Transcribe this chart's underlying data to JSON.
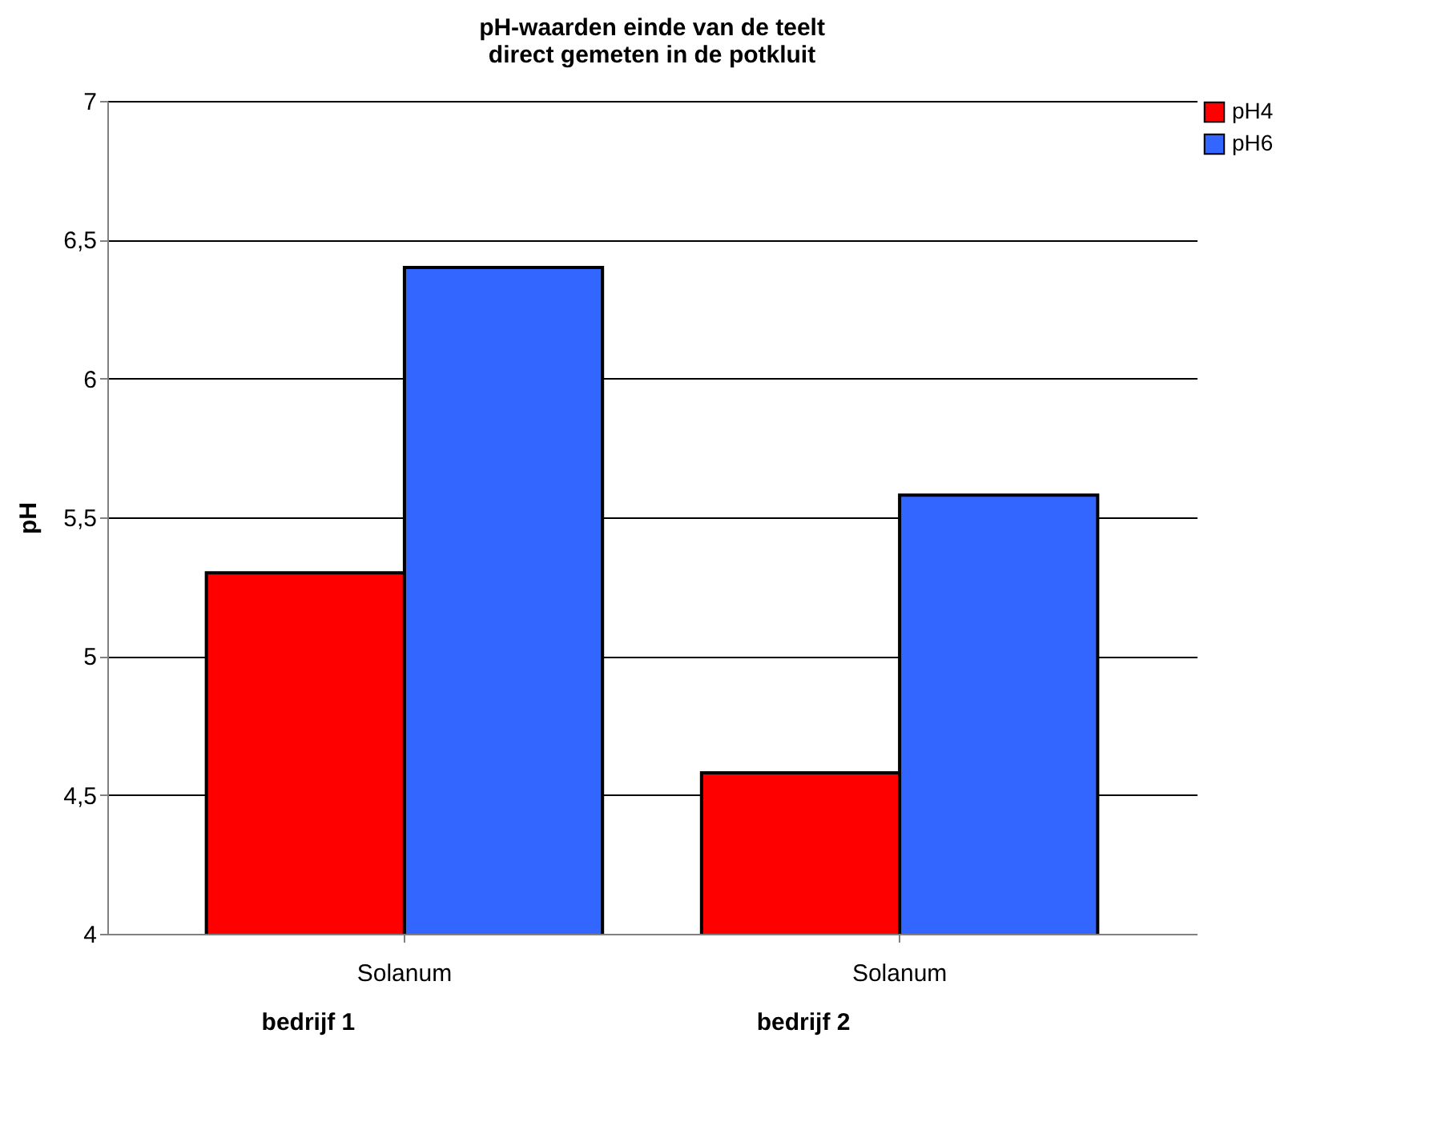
{
  "chart_data": {
    "type": "bar",
    "title": [
      "pH-waarden einde van de teelt",
      "direct gemeten in de potkluit"
    ],
    "ylabel": "pH",
    "categories": [
      "Solanum",
      "Solanum"
    ],
    "series": [
      {
        "name": "pH4",
        "color": "#ff0000",
        "values": [
          5.3,
          4.58
        ]
      },
      {
        "name": "pH6",
        "color": "#3366ff",
        "values": [
          6.4,
          5.58
        ]
      }
    ],
    "ylim": [
      4,
      7
    ],
    "yticks": [
      4,
      {
        "value": 4.5,
        "label": "4,5"
      },
      5,
      {
        "value": 5.5,
        "label": "5,5"
      },
      6,
      {
        "value": 6.5,
        "label": "6,5"
      },
      7
    ],
    "grid": "y",
    "legend": "top right",
    "annotations": [
      "bedrijf 1",
      "bedrijf 2"
    ]
  }
}
